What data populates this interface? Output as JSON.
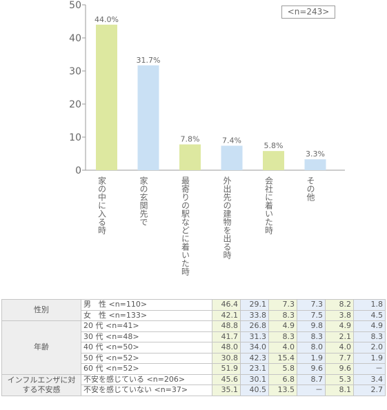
{
  "chart_data": {
    "type": "bar",
    "categories": [
      "家の中に入る時",
      "家の玄関先で",
      "最寄りの駅などに着いた時",
      "外出先の建物を出る時",
      "会社に着いた時",
      "その他"
    ],
    "values": [
      44.0,
      31.7,
      7.8,
      7.4,
      5.8,
      3.3
    ],
    "value_labels": [
      "44.0%",
      "31.7%",
      "7.8%",
      "7.4%",
      "5.8%",
      "3.3%"
    ],
    "bar_colors": [
      "#dde8a0",
      "#c9e0f4",
      "#dde8a0",
      "#c9e0f4",
      "#dde8a0",
      "#c9e0f4"
    ],
    "ylim": [
      0,
      50
    ],
    "yticks": [
      0,
      10,
      20,
      30,
      40,
      50
    ],
    "sample_size": "<n=243>",
    "grid": false
  },
  "table": {
    "groups": [
      {
        "label": "性別",
        "rows": [
          {
            "label": "男　性 <n=110>",
            "values": [
              "46.4",
              "29.1",
              "7.3",
              "7.3",
              "8.2",
              "1.8"
            ]
          },
          {
            "label": "女　性 <n=133>",
            "values": [
              "42.1",
              "33.8",
              "8.3",
              "7.5",
              "3.8",
              "4.5"
            ]
          }
        ]
      },
      {
        "label": "年齢",
        "rows": [
          {
            "label": "20 代 <n=41>",
            "values": [
              "48.8",
              "26.8",
              "4.9",
              "9.8",
              "4.9",
              "4.9"
            ]
          },
          {
            "label": "30 代 <n=48>",
            "values": [
              "41.7",
              "31.3",
              "8.3",
              "8.3",
              "2.1",
              "8.3"
            ]
          },
          {
            "label": "40 代 <n=50>",
            "values": [
              "48.0",
              "34.0",
              "4.0",
              "8.0",
              "4.0",
              "2.0"
            ]
          },
          {
            "label": "50 代 <n=52>",
            "values": [
              "30.8",
              "42.3",
              "15.4",
              "1.9",
              "7.7",
              "1.9"
            ]
          },
          {
            "label": "60 代 <n=52>",
            "values": [
              "51.9",
              "23.1",
              "5.8",
              "9.6",
              "9.6",
              "－"
            ]
          }
        ]
      },
      {
        "label": "インフルエンザに対する不安感",
        "rows": [
          {
            "label": "不安を感じている <n=206>",
            "values": [
              "45.6",
              "30.1",
              "6.8",
              "8.7",
              "5.3",
              "3.4"
            ]
          },
          {
            "label": "不安を感じていない <n=37>",
            "values": [
              "35.1",
              "40.5",
              "13.5",
              "－",
              "8.1",
              "2.7"
            ]
          }
        ]
      }
    ]
  }
}
